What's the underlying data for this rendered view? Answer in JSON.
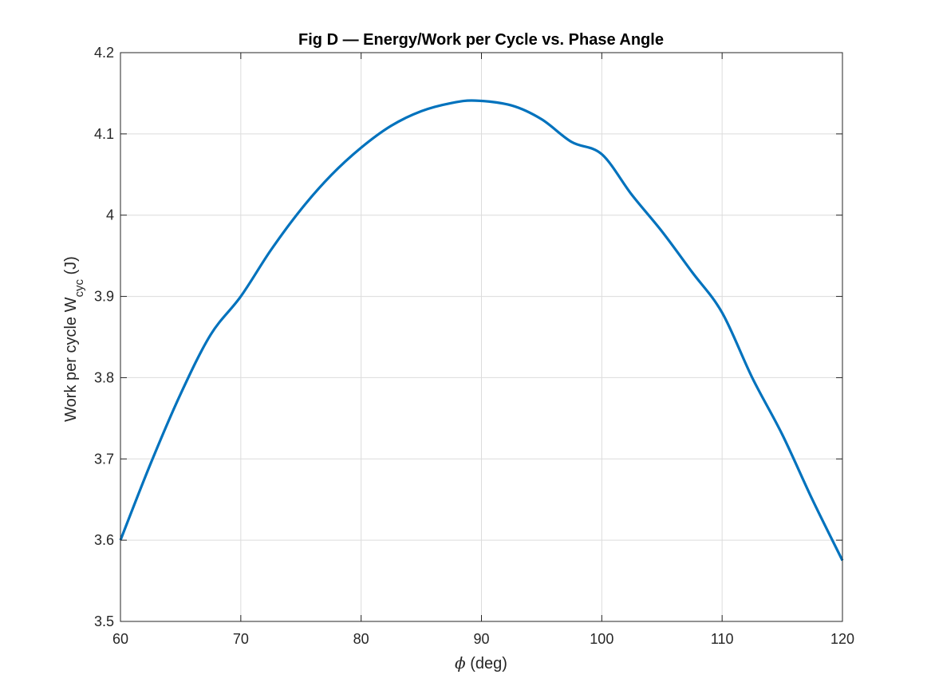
{
  "chart_data": {
    "type": "line",
    "title": "Fig D — Energy/Work per Cycle vs. Phase Angle",
    "xlabel": {
      "symbol": "ϕ",
      "text": " (deg)"
    },
    "ylabel": {
      "prefix": "Work per cycle W",
      "subscript": "cyc",
      "suffix": " (J)"
    },
    "xlim": [
      60,
      120
    ],
    "ylim": [
      3.5,
      4.2
    ],
    "xticks": [
      60,
      70,
      80,
      90,
      100,
      110,
      120
    ],
    "xtick_labels": [
      "60",
      "70",
      "80",
      "90",
      "100",
      "110",
      "120"
    ],
    "yticks": [
      3.5,
      3.6,
      3.7,
      3.8,
      3.9,
      4.0,
      4.1,
      4.2
    ],
    "ytick_labels": [
      "3.5",
      "3.6",
      "3.7",
      "3.8",
      "3.9",
      "4",
      "4.1",
      "4.2"
    ],
    "grid": true,
    "series": [
      {
        "name": "W_cyc",
        "color": "#0072BD",
        "x": [
          60,
          62.5,
          65,
          67.5,
          70,
          72.5,
          75,
          77.5,
          80,
          82.5,
          85,
          87.5,
          89.5,
          92.5,
          95,
          97.5,
          100,
          102.5,
          105,
          107.5,
          110,
          112.5,
          115,
          117.5,
          120
        ],
        "y": [
          3.6,
          3.694,
          3.78,
          3.853,
          3.9,
          3.957,
          4.007,
          4.049,
          4.083,
          4.11,
          4.128,
          4.138,
          4.141,
          4.135,
          4.118,
          4.09,
          4.075,
          4.025,
          3.98,
          3.93,
          3.88,
          3.8,
          3.73,
          3.65,
          3.575
        ]
      }
    ]
  },
  "colors": {
    "line": "#0072BD",
    "grid": "#dcdcdc",
    "axes": "#262626"
  }
}
